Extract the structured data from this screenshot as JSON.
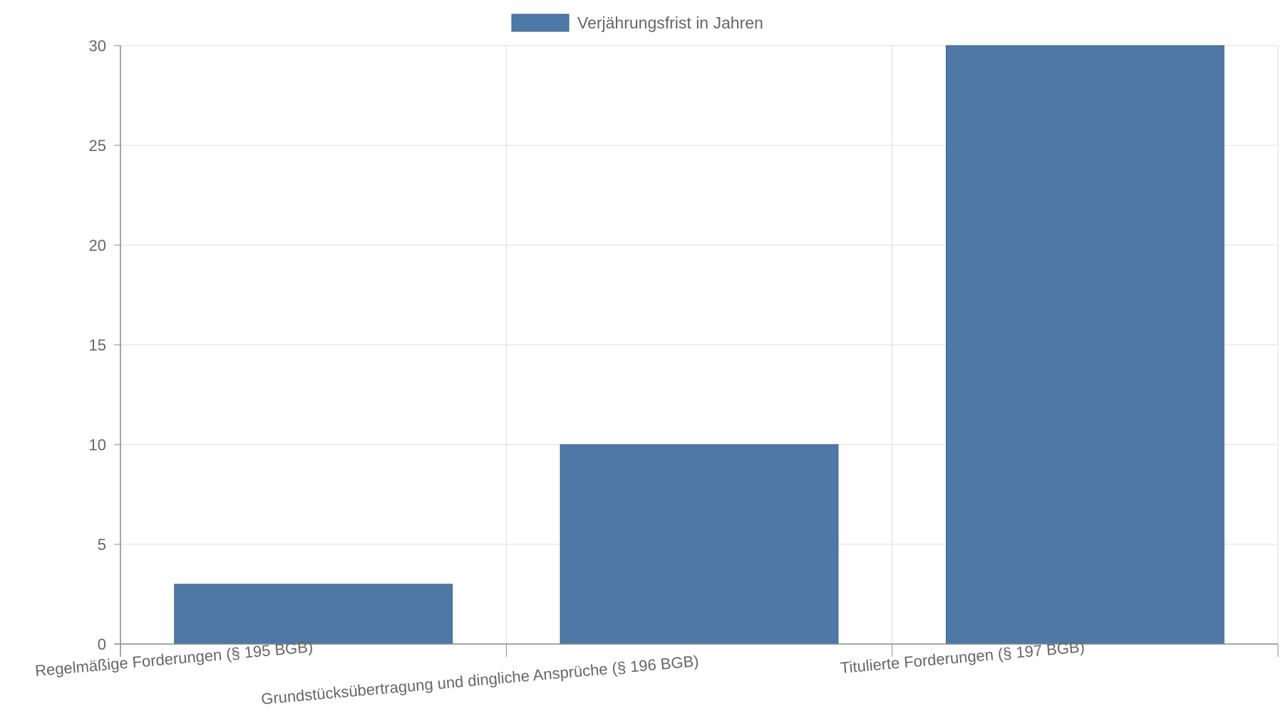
{
  "chart_data": {
    "type": "bar",
    "categories": [
      "Regelmäßige Forderungen (§ 195 BGB)",
      "Grundstücksübertragung und dingliche Ansprüche (§ 196 BGB)",
      "Titulierte Forderungen (§ 197 BGB)"
    ],
    "series": [
      {
        "name": "Verjährungsfrist in Jahren",
        "values": [
          3,
          10,
          30
        ]
      }
    ],
    "ylim": [
      0,
      30
    ],
    "yticks": [
      0,
      5,
      10,
      15,
      20,
      25,
      30
    ],
    "grid": true,
    "legend": "top-center",
    "colors": {
      "bar": "#4e79a7",
      "bar_border": "#3b5f86",
      "grid": "#dddddd",
      "axis": "#888888",
      "text": "#666666"
    }
  }
}
